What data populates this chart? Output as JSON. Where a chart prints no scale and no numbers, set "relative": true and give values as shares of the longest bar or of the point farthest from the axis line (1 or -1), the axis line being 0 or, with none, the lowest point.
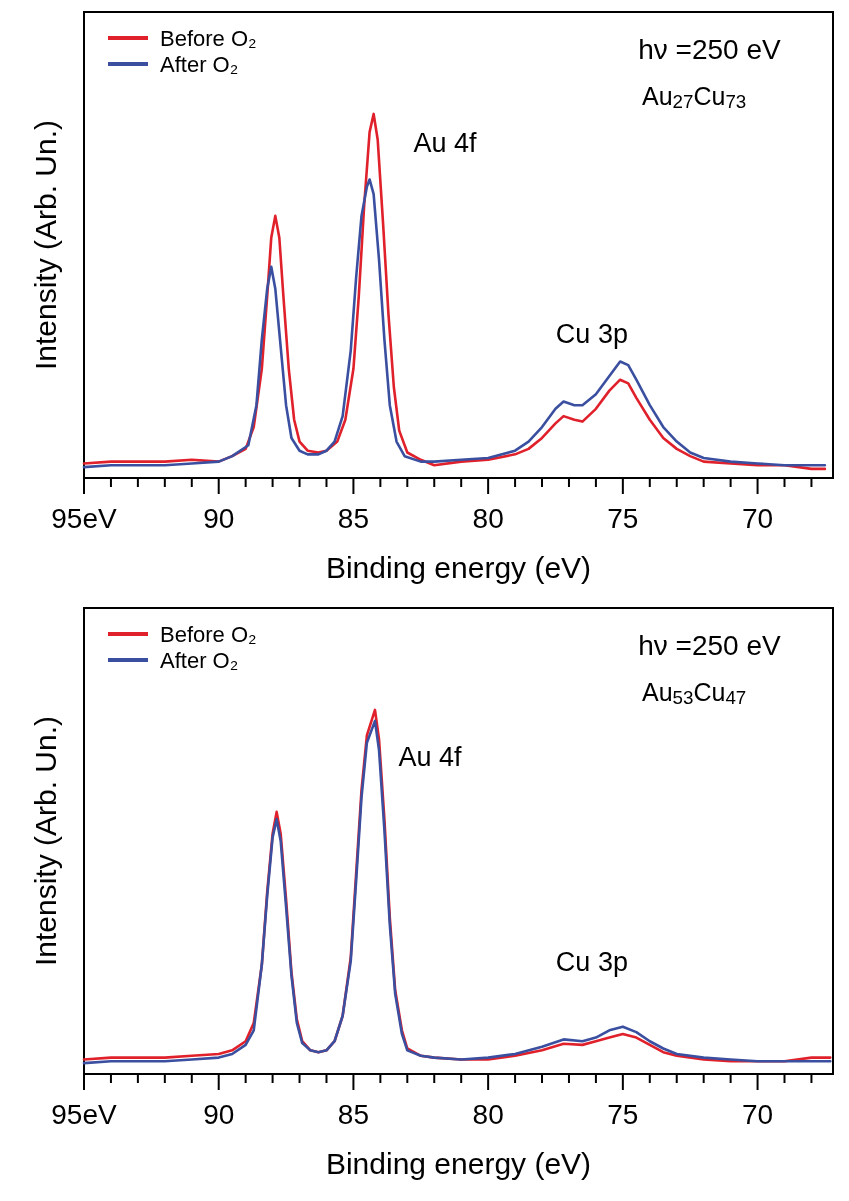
{
  "chart_data": [
    {
      "type": "line",
      "relative": true,
      "xlabel": "Binding energy (eV)",
      "ylabel": "Intensity (Arb. Un.)",
      "legend": "top left",
      "xlim": [
        95,
        67.2
      ],
      "xticks": [
        {
          "value": 95,
          "label": "95eV"
        },
        {
          "value": 94,
          "label": null
        },
        {
          "value": 93,
          "label": null
        },
        {
          "value": 92,
          "label": null
        },
        {
          "value": 91,
          "label": null
        },
        90,
        {
          "value": 89,
          "label": null
        },
        {
          "value": 88,
          "label": null
        },
        {
          "value": 87,
          "label": null
        },
        {
          "value": 86,
          "label": null
        },
        85,
        {
          "value": 84,
          "label": null
        },
        {
          "value": 83,
          "label": null
        },
        {
          "value": 82,
          "label": null
        },
        {
          "value": 81,
          "label": null
        },
        80,
        {
          "value": 79,
          "label": null
        },
        {
          "value": 78,
          "label": null
        },
        {
          "value": 77,
          "label": null
        },
        {
          "value": 76,
          "label": null
        },
        75,
        {
          "value": 74,
          "label": null
        },
        {
          "value": 73,
          "label": null
        },
        {
          "value": 72,
          "label": null
        },
        {
          "value": 71,
          "label": null
        },
        70,
        {
          "value": 69,
          "label": null
        },
        {
          "value": 68,
          "label": null
        }
      ],
      "annotations": [
        "hν =250 eV",
        "Au$_{27}$Cu$_{73}$",
        "Au 4f",
        "Cu 3p"
      ],
      "x": [
        95,
        94,
        93,
        92,
        91,
        90,
        89.5,
        89,
        88.7,
        88.4,
        88.2,
        88.05,
        87.9,
        87.75,
        87.6,
        87.4,
        87.2,
        87,
        86.7,
        86.3,
        86,
        85.6,
        85.3,
        85,
        84.8,
        84.6,
        84.4,
        84.25,
        84.1,
        83.9,
        83.7,
        83.5,
        83.3,
        83,
        82.5,
        82,
        81,
        80,
        79,
        78.5,
        78,
        77.5,
        77.2,
        76.8,
        76.5,
        76,
        75.5,
        75.1,
        74.8,
        74.5,
        74,
        73.5,
        73,
        72.5,
        72,
        71,
        70,
        69,
        68,
        67.5
      ],
      "series": [
        {
          "name": "Before O₂",
          "color": "#e0202a",
          "values": [
            0.04,
            0.045,
            0.045,
            0.045,
            0.05,
            0.045,
            0.06,
            0.08,
            0.14,
            0.3,
            0.5,
            0.66,
            0.72,
            0.66,
            0.5,
            0.3,
            0.16,
            0.1,
            0.075,
            0.07,
            0.075,
            0.1,
            0.16,
            0.3,
            0.5,
            0.75,
            0.95,
            1.0,
            0.93,
            0.7,
            0.45,
            0.25,
            0.13,
            0.07,
            0.05,
            0.035,
            0.045,
            0.05,
            0.065,
            0.08,
            0.11,
            0.15,
            0.17,
            0.16,
            0.155,
            0.19,
            0.24,
            0.27,
            0.26,
            0.22,
            0.16,
            0.11,
            0.08,
            0.06,
            0.045,
            0.04,
            0.035,
            0.035,
            0.025,
            0.025
          ]
        },
        {
          "name": "After O₂",
          "color": "#3a4fa0",
          "x": [
            95,
            94,
            93,
            92,
            91,
            90,
            89.5,
            88.9,
            88.6,
            88.4,
            88.2,
            88.05,
            87.9,
            87.7,
            87.5,
            87.3,
            87,
            86.7,
            86.3,
            86,
            85.7,
            85.4,
            85.1,
            84.9,
            84.7,
            84.5,
            84.4,
            84.25,
            84.05,
            83.85,
            83.65,
            83.4,
            83.1,
            82.5,
            82,
            81,
            80,
            79,
            78.5,
            78,
            77.5,
            77.2,
            76.8,
            76.5,
            76,
            75.5,
            75.1,
            74.8,
            74.5,
            74,
            73.5,
            73,
            72.5,
            72,
            71,
            70,
            69,
            68,
            67.5
          ],
          "values": [
            0.03,
            0.035,
            0.035,
            0.035,
            0.04,
            0.045,
            0.06,
            0.09,
            0.2,
            0.38,
            0.52,
            0.58,
            0.52,
            0.36,
            0.2,
            0.11,
            0.075,
            0.065,
            0.065,
            0.075,
            0.1,
            0.17,
            0.35,
            0.55,
            0.72,
            0.8,
            0.82,
            0.78,
            0.6,
            0.38,
            0.2,
            0.1,
            0.06,
            0.045,
            0.045,
            0.05,
            0.055,
            0.075,
            0.1,
            0.14,
            0.19,
            0.21,
            0.2,
            0.2,
            0.23,
            0.28,
            0.32,
            0.31,
            0.27,
            0.2,
            0.14,
            0.1,
            0.07,
            0.055,
            0.045,
            0.04,
            0.035,
            0.035,
            0.035
          ]
        }
      ]
    },
    {
      "type": "line",
      "relative": true,
      "xlabel": "Binding energy (eV)",
      "ylabel": "Intensity (Arb. Un.)",
      "legend": "top left",
      "xlim": [
        95,
        67.2
      ],
      "xticks": [
        {
          "value": 95,
          "label": "95eV"
        },
        {
          "value": 94,
          "label": null
        },
        {
          "value": 93,
          "label": null
        },
        {
          "value": 92,
          "label": null
        },
        {
          "value": 91,
          "label": null
        },
        90,
        {
          "value": 89,
          "label": null
        },
        {
          "value": 88,
          "label": null
        },
        {
          "value": 87,
          "label": null
        },
        {
          "value": 86,
          "label": null
        },
        85,
        {
          "value": 84,
          "label": null
        },
        {
          "value": 83,
          "label": null
        },
        {
          "value": 82,
          "label": null
        },
        {
          "value": 81,
          "label": null
        },
        80,
        {
          "value": 79,
          "label": null
        },
        {
          "value": 78,
          "label": null
        },
        {
          "value": 77,
          "label": null
        },
        {
          "value": 76,
          "label": null
        },
        75,
        {
          "value": 74,
          "label": null
        },
        {
          "value": 73,
          "label": null
        },
        {
          "value": 72,
          "label": null
        },
        {
          "value": 71,
          "label": null
        },
        70,
        {
          "value": 69,
          "label": null
        },
        {
          "value": 68,
          "label": null
        }
      ],
      "annotations": [
        "hν =250 eV",
        "Au$_{53}$Cu$_{47}$",
        "Au 4f",
        "Cu 3p"
      ],
      "x": [
        95,
        94,
        92,
        91,
        90,
        89.5,
        89,
        88.7,
        88.4,
        88.2,
        88,
        87.85,
        87.7,
        87.5,
        87.3,
        87.1,
        86.9,
        86.6,
        86.3,
        86,
        85.7,
        85.4,
        85.1,
        84.9,
        84.7,
        84.5,
        84.2,
        84.05,
        83.85,
        83.65,
        83.45,
        83.2,
        83,
        82.5,
        82,
        81,
        80,
        79,
        78,
        77.2,
        76.5,
        76,
        75.5,
        75,
        74.5,
        74,
        73.5,
        73,
        72,
        71,
        70,
        69,
        68,
        67.3
      ],
      "series": [
        {
          "name": "Before O₂",
          "color": "#e0202a",
          "values": [
            0.04,
            0.045,
            0.045,
            0.05,
            0.055,
            0.065,
            0.09,
            0.14,
            0.3,
            0.5,
            0.66,
            0.72,
            0.66,
            0.48,
            0.28,
            0.15,
            0.09,
            0.065,
            0.06,
            0.065,
            0.09,
            0.16,
            0.32,
            0.55,
            0.78,
            0.93,
            1.0,
            0.92,
            0.7,
            0.43,
            0.23,
            0.12,
            0.07,
            0.05,
            0.045,
            0.04,
            0.04,
            0.05,
            0.065,
            0.083,
            0.08,
            0.09,
            0.1,
            0.11,
            0.1,
            0.08,
            0.06,
            0.05,
            0.04,
            0.035,
            0.035,
            0.035,
            0.045,
            0.045
          ]
        },
        {
          "name": "After O₂",
          "color": "#3a4fa0",
          "values": [
            0.03,
            0.035,
            0.035,
            0.04,
            0.045,
            0.055,
            0.08,
            0.12,
            0.3,
            0.49,
            0.65,
            0.7,
            0.64,
            0.46,
            0.27,
            0.14,
            0.085,
            0.065,
            0.06,
            0.065,
            0.09,
            0.16,
            0.31,
            0.53,
            0.76,
            0.91,
            0.97,
            0.89,
            0.67,
            0.41,
            0.22,
            0.11,
            0.065,
            0.05,
            0.045,
            0.04,
            0.045,
            0.055,
            0.075,
            0.095,
            0.09,
            0.1,
            0.12,
            0.13,
            0.115,
            0.09,
            0.07,
            0.055,
            0.045,
            0.04,
            0.035,
            0.035,
            0.035,
            0.035
          ]
        }
      ]
    }
  ]
}
